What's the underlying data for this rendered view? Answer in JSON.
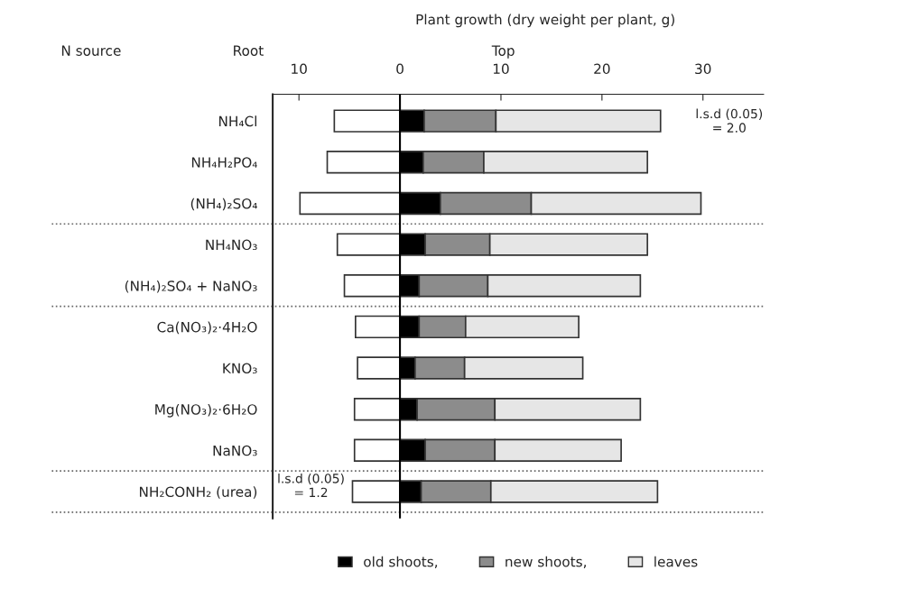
{
  "chart_data": {
    "type": "bar",
    "orientation": "horizontal",
    "stacked": true,
    "title": "Plant growth (dry weight per plant, g)",
    "categories": [
      "NH₄Cl",
      "NH₄H₂PO₄",
      "(NH₄)₂SO₄",
      "NH₄NO₃",
      "(NH₄)₂SO₄ + NaNO₃",
      "Ca(NO₃)₂·4H₂O",
      "KNO₃",
      "Mg(NO₃)₂·6H₂O",
      "NaNO₃",
      "NH₂CONH₂ (urea)"
    ],
    "series": [
      {
        "color": "#ffffff",
        "values": [
          -6.5,
          -7.2,
          -9.9,
          -6.2,
          -5.5,
          -4.4,
          -4.2,
          -4.5,
          -4.5,
          -4.7
        ]
      },
      {
        "name": "old shoots,",
        "color": "#000000",
        "values": [
          2.4,
          2.3,
          4.0,
          2.5,
          1.9,
          1.9,
          1.5,
          1.7,
          2.5,
          2.1
        ]
      },
      {
        "name": "new shoots,",
        "color": "#8c8c8c",
        "values": [
          7.1,
          6.0,
          9.0,
          6.4,
          6.8,
          4.6,
          4.9,
          7.7,
          6.9,
          6.9
        ]
      },
      {
        "name": "leaves",
        "color": "#e6e6e6",
        "values": [
          16.3,
          16.2,
          16.8,
          15.6,
          15.1,
          11.2,
          11.7,
          14.4,
          12.5,
          16.5
        ]
      }
    ],
    "xlim": [
      -12.6,
      36
    ],
    "xticks": [
      {
        "value": -10,
        "label": "10"
      },
      0,
      10,
      20,
      30
    ],
    "ref_lines": [
      {
        "axis": "x",
        "value": 0,
        "line_style": "solid",
        "color": "#000000"
      }
    ],
    "annotations": [
      "N source",
      "Root",
      "Top",
      "l.s.d (0.05)\n= 2.0",
      "l.s.d (0.05)\n= 1.2"
    ],
    "legend": "bottom",
    "grid": false
  }
}
